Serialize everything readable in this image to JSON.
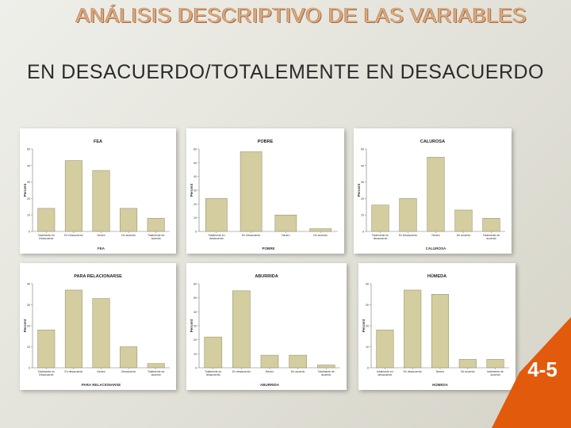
{
  "slide": {
    "title_line1": "ANÁLISIS DESCRIPTIVO DE LAS VARIABLES",
    "title_line2": "EN DESACUERDO/TOTALEMENTE EN DESACUERDO",
    "page_label": "4-5",
    "colors": {
      "bar": "#d3cd9f",
      "bar_stroke": "#8d8a66",
      "badge": "#e25a0c",
      "title": "#e0a97a"
    }
  },
  "chart_data": [
    {
      "type": "bar",
      "title": "FEA",
      "xlabel": "FEA",
      "ylabel": "Percent",
      "ylim": [
        0,
        50
      ],
      "yticks": [
        0,
        10,
        20,
        30,
        40,
        50
      ],
      "categories": [
        "Totalmente en Desacuerdo",
        "En Desacuerdo",
        "Neutro",
        "De acuerdo",
        "Totalmente de acuerdo"
      ],
      "values": [
        14,
        43,
        37,
        14,
        8
      ]
    },
    {
      "type": "bar",
      "title": "POBRE",
      "xlabel": "POBRE",
      "ylabel": "Percent",
      "ylim": [
        0,
        60
      ],
      "yticks": [
        0,
        10,
        20,
        30,
        40,
        50,
        60
      ],
      "categories": [
        "Totalmente en desacuerdo",
        "En Desacuerdo",
        "Neutro",
        "De acuerdo"
      ],
      "values": [
        24,
        58,
        12,
        2
      ]
    },
    {
      "type": "bar",
      "title": "CALUROSA",
      "xlabel": "CALUROSA",
      "ylabel": "Percent",
      "ylim": [
        0,
        50
      ],
      "yticks": [
        0,
        10,
        20,
        30,
        40,
        50
      ],
      "categories": [
        "Totalmente en desacuerdo",
        "En Desacuerdo",
        "Neutro",
        "De acuerdo",
        "Totalmente de acuerdo"
      ],
      "values": [
        16,
        20,
        45,
        13,
        8
      ]
    },
    {
      "type": "bar",
      "title": "PARA RELACIONARSE",
      "xlabel": "PARA RELACIONARSE",
      "ylabel": "Percent",
      "ylim": [
        0,
        40
      ],
      "yticks": [
        0,
        10,
        20,
        30,
        40
      ],
      "categories": [
        "Totalmente en Desacuerdo",
        "En desacuerdo",
        "Neutro",
        "Desacuerdo",
        "Totalmente de acuerdo"
      ],
      "values": [
        18,
        37,
        33,
        10,
        2
      ]
    },
    {
      "type": "bar",
      "title": "ABURRIDA",
      "xlabel": "ABURRIDA",
      "ylabel": "Percent",
      "ylim": [
        0,
        60
      ],
      "yticks": [
        0,
        10,
        20,
        30,
        40,
        50,
        60
      ],
      "categories": [
        "Totalmente en desacuerdo",
        "En desacuerdo",
        "Neutro",
        "De acuerdo",
        "Totalmente de acuerdo"
      ],
      "values": [
        22,
        55,
        9,
        9,
        2
      ]
    },
    {
      "type": "bar",
      "title": "HÚMEDA",
      "xlabel": "HÚMEDA",
      "ylabel": "Percent",
      "ylim": [
        0,
        40
      ],
      "yticks": [
        0,
        10,
        20,
        30,
        40
      ],
      "categories": [
        "totalmente en desacuerdo",
        "En desacuerdo",
        "Neutro",
        "De acuerdo",
        "totalmente de acuerdo"
      ],
      "values": [
        18,
        37,
        35,
        4,
        4
      ]
    }
  ]
}
